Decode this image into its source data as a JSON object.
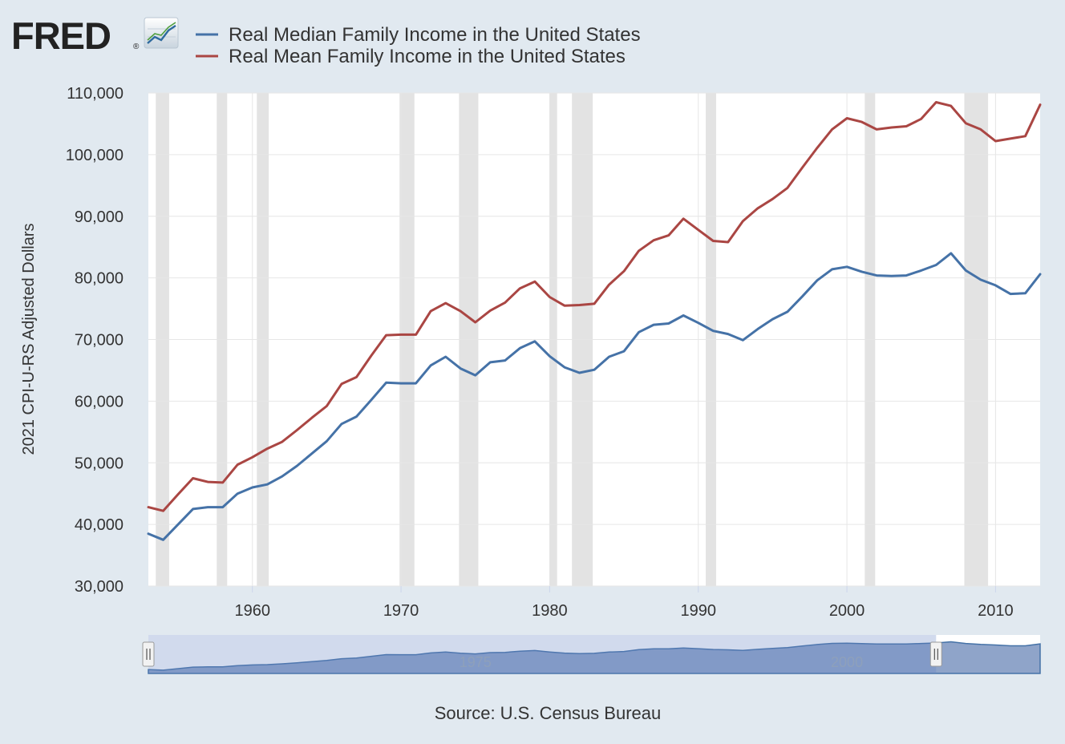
{
  "header": {
    "logo_text": "FRED",
    "logo_mark": "®",
    "logo_icon": "trend-line-icon"
  },
  "legend": [
    {
      "label": "Real Median Family Income in the United States",
      "color": "#4572a7"
    },
    {
      "label": "Real Mean Family Income in the United States",
      "color": "#aa4643"
    }
  ],
  "source": "Source: U.S. Census Bureau",
  "navigator": {
    "labels": [
      "1975",
      "2000"
    ],
    "handle_glyph": "||",
    "selected_range": [
      1953,
      2006
    ],
    "full_range": [
      1953,
      2013
    ]
  },
  "chart_data": {
    "type": "line",
    "title": "",
    "xlabel": "",
    "ylabel": "2021 CPI-U-RS Adjusted Dollars",
    "xlim": [
      1953,
      2013
    ],
    "ylim": [
      30000,
      110000
    ],
    "x_ticks": [
      1960,
      1970,
      1980,
      1990,
      2000,
      2010
    ],
    "y_ticks": [
      30000,
      40000,
      50000,
      60000,
      70000,
      80000,
      90000,
      100000,
      110000
    ],
    "y_tick_labels": [
      "30,000",
      "40,000",
      "50,000",
      "60,000",
      "70,000",
      "80,000",
      "90,000",
      "100,000",
      "110,000"
    ],
    "grid": true,
    "legend_position": "top-left",
    "recessions": [
      [
        1953.5,
        1954.4
      ],
      [
        1957.6,
        1958.3
      ],
      [
        1960.3,
        1961.1
      ],
      [
        1969.9,
        1970.9
      ],
      [
        1973.9,
        1975.2
      ],
      [
        1980.0,
        1980.5
      ],
      [
        1981.5,
        1982.9
      ],
      [
        1990.5,
        1991.2
      ],
      [
        2001.2,
        2001.9
      ],
      [
        2007.9,
        2009.5
      ]
    ],
    "x": [
      1953,
      1954,
      1955,
      1956,
      1957,
      1958,
      1959,
      1960,
      1961,
      1962,
      1963,
      1964,
      1965,
      1966,
      1967,
      1968,
      1969,
      1970,
      1971,
      1972,
      1973,
      1974,
      1975,
      1976,
      1977,
      1978,
      1979,
      1980,
      1981,
      1982,
      1983,
      1984,
      1985,
      1986,
      1987,
      1988,
      1989,
      1990,
      1991,
      1992,
      1993,
      1994,
      1995,
      1996,
      1997,
      1998,
      1999,
      2000,
      2001,
      2002,
      2003,
      2004,
      2005,
      2006,
      2007,
      2008,
      2009,
      2010,
      2011,
      2012,
      2013
    ],
    "series": [
      {
        "name": "Real Median Family Income in the United States",
        "color": "#4572a7",
        "values": [
          38500,
          37500,
          40000,
          42500,
          42800,
          42800,
          45000,
          46000,
          46500,
          47800,
          49500,
          51500,
          53500,
          56300,
          57500,
          60200,
          63000,
          62900,
          62900,
          65800,
          67200,
          65300,
          64200,
          66300,
          66600,
          68600,
          69700,
          67300,
          65500,
          64600,
          65100,
          67200,
          68100,
          71200,
          72400,
          72600,
          73900,
          72700,
          71400,
          70900,
          69900,
          71700,
          73300,
          74500,
          77000,
          79600,
          81400,
          81800,
          81000,
          80400,
          80300,
          80400,
          81200,
          82100,
          84000,
          81200,
          79700,
          78800,
          77400,
          77500,
          80600
        ]
      },
      {
        "name": "Real Mean Family Income in the United States",
        "color": "#aa4643",
        "values": [
          42800,
          42200,
          44900,
          47500,
          46900,
          46800,
          49700,
          50900,
          52300,
          53400,
          55300,
          57300,
          59200,
          62800,
          63900,
          67400,
          70700,
          70800,
          70800,
          74600,
          75900,
          74600,
          72800,
          74700,
          76000,
          78300,
          79400,
          76900,
          75500,
          75600,
          75800,
          78900,
          81100,
          84400,
          86100,
          86900,
          89600,
          87800,
          86000,
          85800,
          89200,
          91300,
          92800,
          94600,
          97900,
          101100,
          104100,
          105900,
          105300,
          104100,
          104400,
          104600,
          105800,
          108500,
          107900,
          105100,
          104100,
          102200,
          102600,
          103000,
          108100
        ]
      }
    ]
  }
}
